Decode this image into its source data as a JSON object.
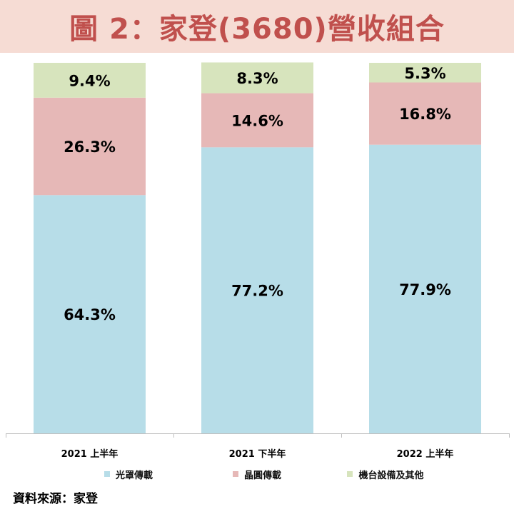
{
  "title": "圖 2：家登(3680)營收組合",
  "source": "資料來源：家登",
  "colors": {
    "title_bg": "#f6dcd4",
    "title_text": "#c0504d",
    "series": [
      "#b7dde8",
      "#e6b8b7",
      "#d7e4bd"
    ]
  },
  "chart_data": {
    "type": "bar",
    "stacked": true,
    "percent": true,
    "categories": [
      "2021 上半年",
      "2021 下半年",
      "2022 上半年"
    ],
    "series": [
      {
        "name": "光罩傳載",
        "values": [
          64.3,
          77.2,
          77.9
        ],
        "labels": [
          "64.3%",
          "77.2%",
          "77.9%"
        ]
      },
      {
        "name": "晶圓傳載",
        "values": [
          26.3,
          14.6,
          16.8
        ],
        "labels": [
          "26.3%",
          "14.6%",
          "16.8%"
        ]
      },
      {
        "name": "機台設備及其他",
        "values": [
          9.4,
          8.3,
          5.3
        ],
        "labels": [
          "9.4%",
          "8.3%",
          "5.3%"
        ]
      }
    ],
    "ylim": [
      0,
      100
    ],
    "grid": false,
    "legend_position": "bottom"
  }
}
